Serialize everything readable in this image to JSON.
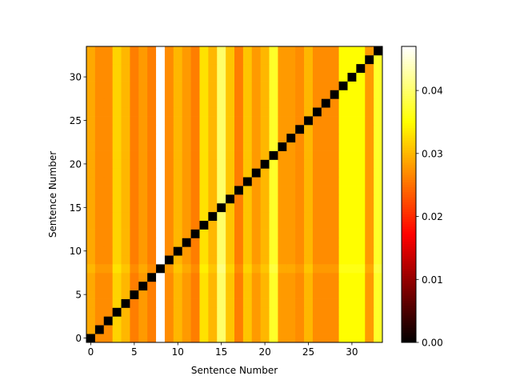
{
  "chart_data": {
    "type": "heatmap",
    "title": "",
    "xlabel": "Sentence Number",
    "ylabel": "Sentence Number",
    "n": 34,
    "x_ticks": [
      0,
      5,
      10,
      15,
      20,
      25,
      30
    ],
    "y_ticks": [
      0,
      5,
      10,
      15,
      20,
      25,
      30
    ],
    "colormap": "hot",
    "vmin": 0.0,
    "vmax": 0.047,
    "colorbar_ticks": [
      "0.00",
      "0.01",
      "0.02",
      "0.03",
      "0.04"
    ],
    "colorbar_tick_values": [
      0.0,
      0.01,
      0.02,
      0.03,
      0.04
    ],
    "diagonal_value": 0.0,
    "column_values": [
      0.029,
      0.027,
      0.027,
      0.032,
      0.03,
      0.026,
      0.028,
      0.026,
      0.047,
      0.027,
      0.03,
      0.028,
      0.026,
      0.033,
      0.03,
      0.04,
      0.031,
      0.026,
      0.031,
      0.028,
      0.03,
      0.037,
      0.028,
      0.028,
      0.027,
      0.03,
      0.027,
      0.027,
      0.027,
      0.035,
      0.035,
      0.035,
      0.028,
      0.037
    ],
    "row_offsets": [
      0.0,
      0.0,
      0.0,
      0.0,
      0.0,
      0.0,
      0.0,
      0.0,
      0.001,
      0.0,
      0.0,
      0.0,
      0.0,
      0.0,
      0.0,
      0.0,
      0.0,
      0.0,
      0.0,
      0.0,
      0.0,
      0.0,
      0.0,
      0.0,
      0.0,
      0.0,
      0.0,
      0.0,
      0.0,
      0.0,
      0.0,
      0.0,
      0.0,
      0.0
    ],
    "legend": "colorbar-right"
  }
}
